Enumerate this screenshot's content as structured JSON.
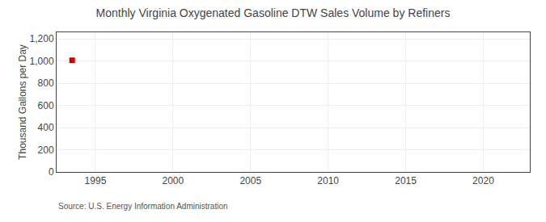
{
  "chart_data": {
    "type": "scatter",
    "title": "Monthly Virginia Oxygenated Gasoline DTW Sales Volume by Refiners",
    "ylabel": "Thousand Gallons per Day",
    "source": "Source: U.S. Energy Information Administration",
    "x": [
      1993.5
    ],
    "values": [
      1007.0
    ],
    "color": "#cc0000",
    "marker": "square",
    "xlim": [
      1992.5,
      2023.0
    ],
    "ylim": [
      0,
      1260
    ],
    "xticks": [
      1995,
      2000,
      2005,
      2010,
      2015,
      2020
    ],
    "yticks": [
      0,
      200,
      400,
      600,
      800,
      {
        "value": 1000,
        "label": "1,000"
      },
      {
        "value": 1200,
        "label": "1,200"
      }
    ],
    "grid": true
  }
}
